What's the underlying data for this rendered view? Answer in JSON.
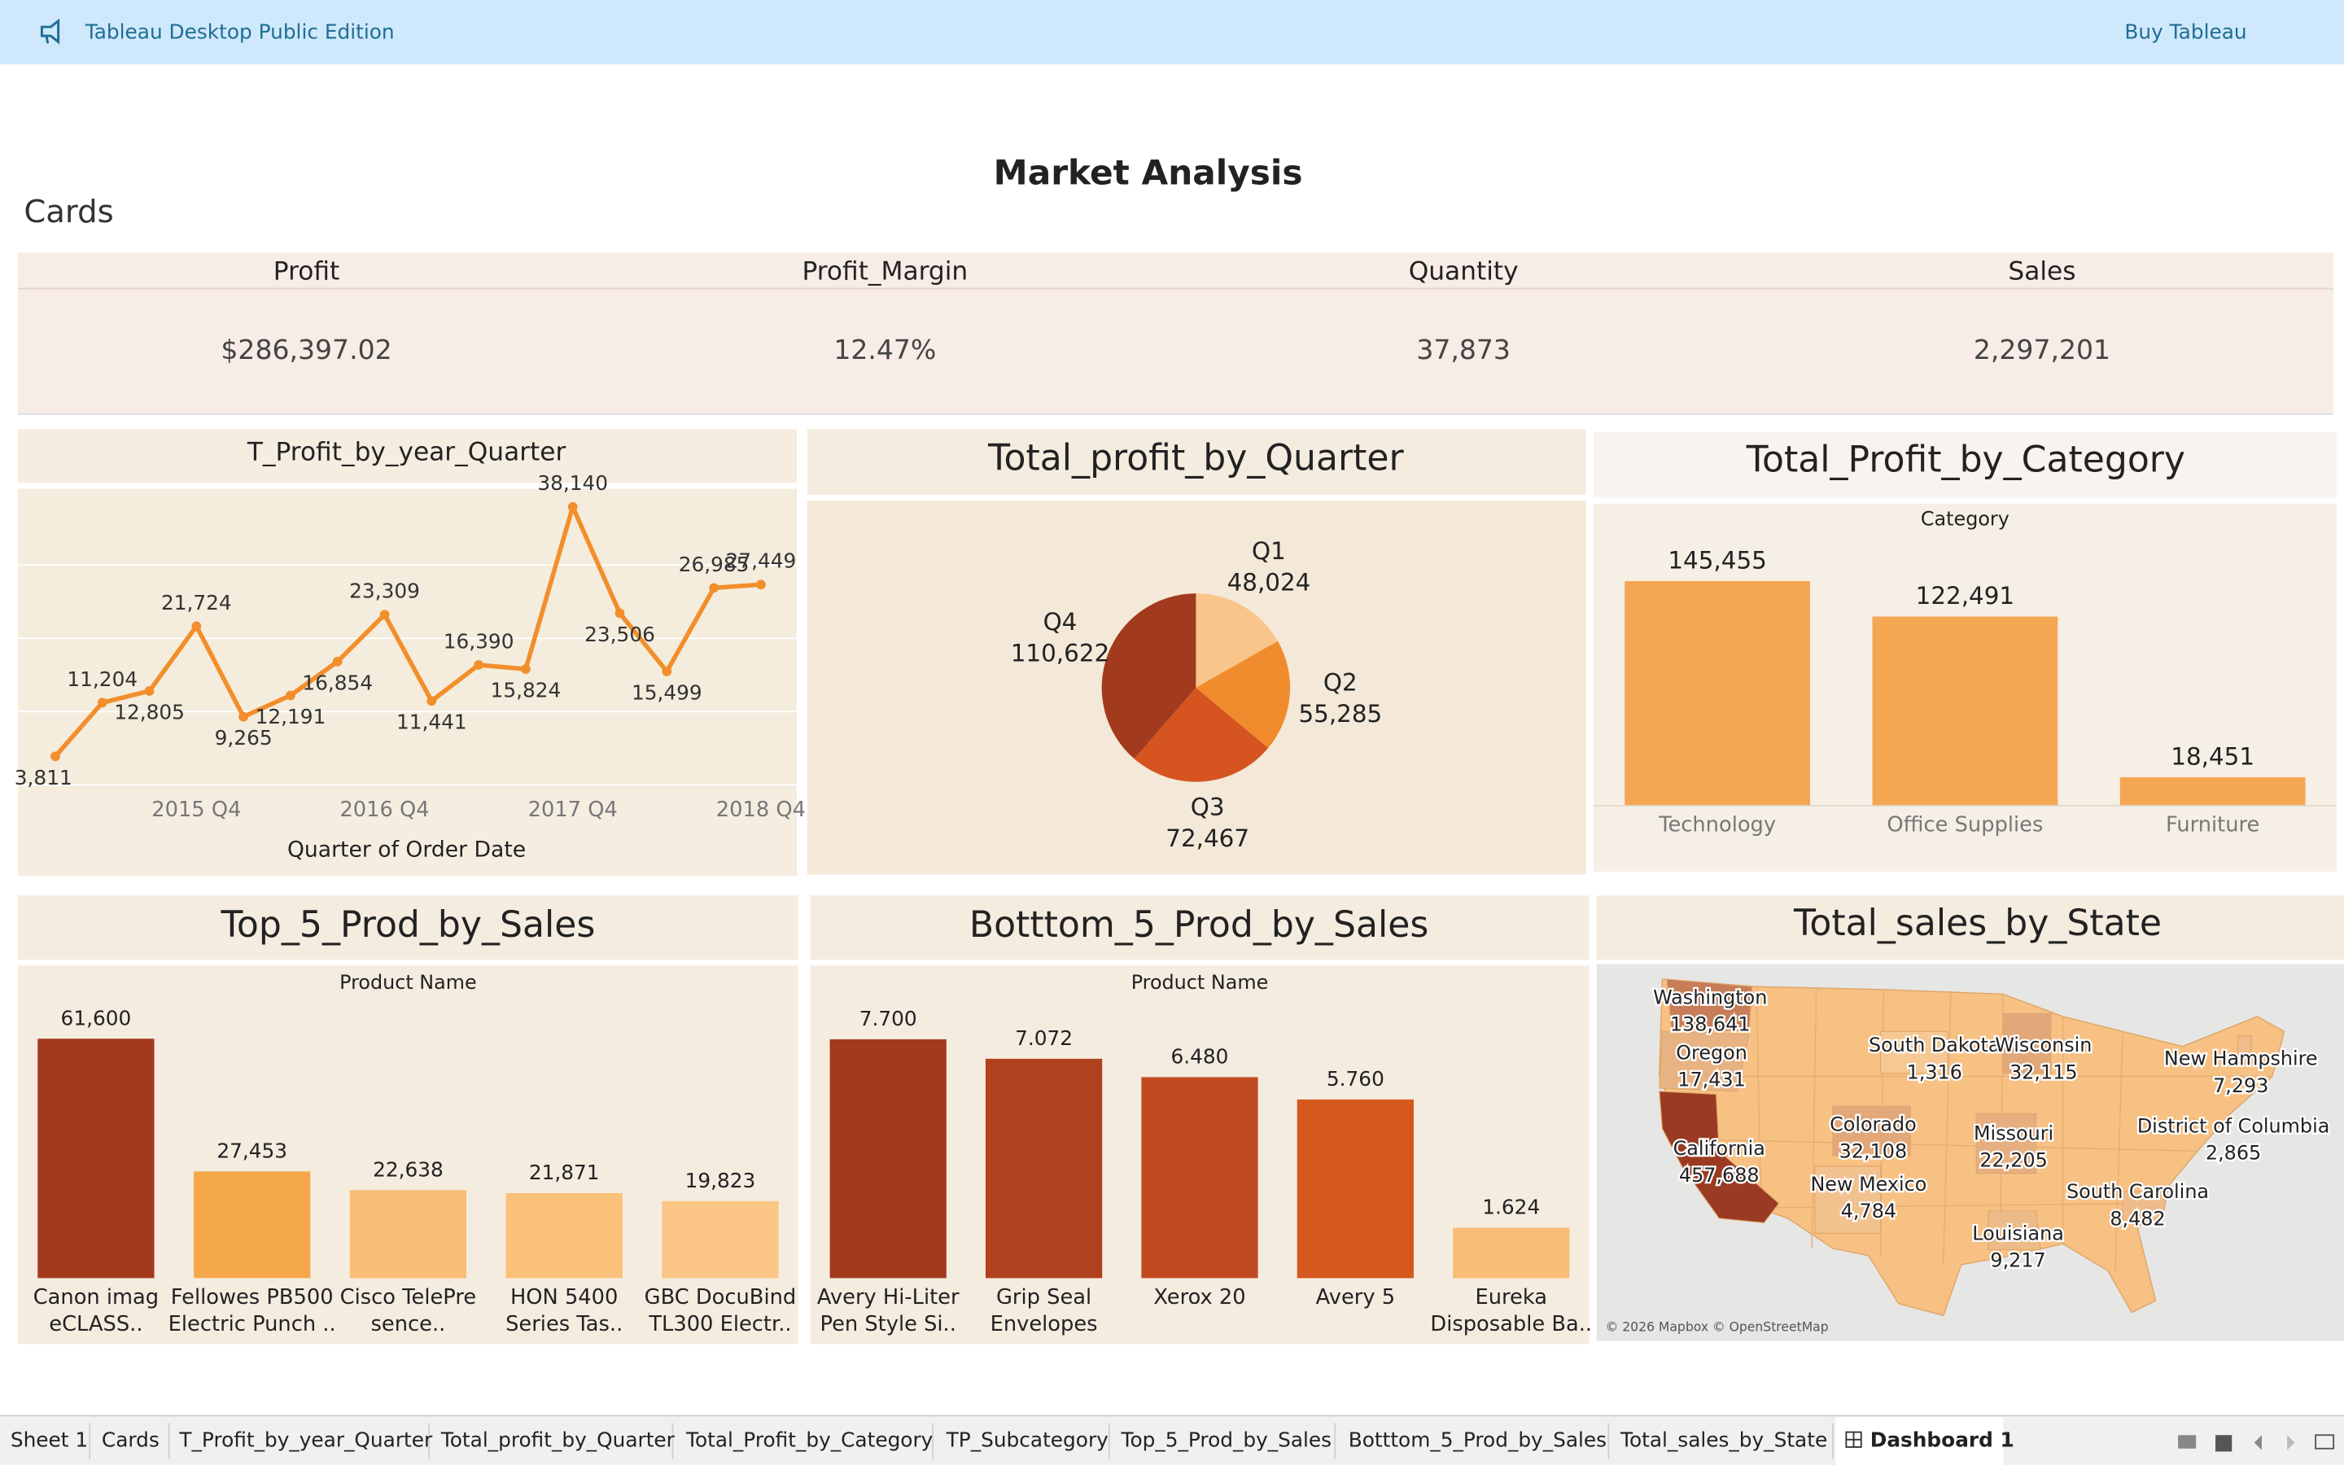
{
  "app_bar": {
    "title": "Tableau Desktop Public Edition",
    "action": "Buy Tableau"
  },
  "dashboard": {
    "title": "Market Analysis",
    "section": "Cards"
  },
  "cards": [
    {
      "label": "Profit",
      "value": "$286,397.02"
    },
    {
      "label": "Profit_Margin",
      "value": "12.47%"
    },
    {
      "label": "Quantity",
      "value": "37,873"
    },
    {
      "label": "Sales",
      "value": "2,297,201"
    }
  ],
  "chart_data": [
    {
      "type": "line",
      "title": "T_Profit_by_year_Quarter",
      "x_label": "Quarter of Order Date",
      "color": "#f28e2b",
      "categories": [
        null,
        null,
        null,
        "2015 Q4",
        null,
        null,
        null,
        "2016 Q4",
        null,
        null,
        null,
        "2017 Q4",
        null,
        null,
        null,
        "2018 Q4"
      ],
      "values": [
        3811,
        11204,
        12805,
        21724,
        9265,
        12191,
        16854,
        23309,
        11441,
        16390,
        15824,
        38140,
        23506,
        15499,
        26985,
        27449
      ],
      "value_labels": [
        "3,811",
        "11,204",
        "12,805",
        "21,724",
        "9,265",
        "12,191",
        "16,854",
        "23,309",
        "11,441",
        "16,390",
        "15,824",
        "38,140",
        "23,506",
        "15,499",
        "26,985",
        "27,449"
      ],
      "ylim": [
        0,
        40000
      ]
    },
    {
      "type": "pie",
      "title": "Total_profit_by_Quarter",
      "categories": [
        "Q1",
        "Q2",
        "Q3",
        "Q4"
      ],
      "values": [
        48024,
        55285,
        72467,
        110622
      ],
      "value_labels": [
        "48,024",
        "55,285",
        "72,467",
        "110,622"
      ],
      "colors": [
        "#f9c58b",
        "#f08c2e",
        "#d5541f",
        "#a23a1e"
      ]
    },
    {
      "type": "bar",
      "title": "Total_Profit_by_Category",
      "x_label": "Category",
      "categories": [
        "Technology",
        "Office Supplies",
        "Furniture"
      ],
      "values": [
        145455,
        122491,
        18451
      ],
      "value_labels": [
        "145,455",
        "122,491",
        "18,451"
      ],
      "colors": [
        "#f5a653",
        "#f5a653",
        "#f5a653"
      ],
      "ylim": [
        0,
        150000
      ]
    },
    {
      "type": "bar",
      "title": "Top_5_Prod_by_Sales",
      "x_label": "Product Name",
      "categories": [
        [
          "Canon imag",
          "eCLASS.."
        ],
        [
          "Fellowes PB500",
          "Electric Punch .."
        ],
        [
          "Cisco TelePre",
          "sence.."
        ],
        [
          "HON 5400",
          "Series Tas.."
        ],
        [
          "GBC DocuBind",
          "TL300 Electr.."
        ]
      ],
      "values": [
        61600,
        27453,
        22638,
        21871,
        19823
      ],
      "value_labels": [
        "61,600",
        "27,453",
        "22,638",
        "21,871",
        "19,823"
      ],
      "colors": [
        "#a23a1e",
        "#f5a84a",
        "#f9bd77",
        "#fbc07a",
        "#fbc585"
      ],
      "ylim": [
        0,
        65000
      ]
    },
    {
      "type": "bar",
      "title": "Botttom_5_Prod_by_Sales",
      "x_label": "Product Name",
      "categories": [
        [
          "Avery Hi-Liter",
          "Pen Style Si.."
        ],
        [
          "Grip Seal",
          "Envelopes"
        ],
        [
          "Xerox 20"
        ],
        [
          "Avery 5"
        ],
        [
          "Eureka",
          "Disposable Ba.."
        ]
      ],
      "values": [
        7.7,
        7.072,
        6.48,
        5.76,
        1.624
      ],
      "value_labels": [
        "7.700",
        "7.072",
        "6.480",
        "5.760",
        "1.624"
      ],
      "colors": [
        "#a23a1e",
        "#b0411f",
        "#c14a20",
        "#d5581f",
        "#f9bd77"
      ],
      "ylim": [
        0,
        8
      ]
    },
    {
      "type": "map",
      "title": "Total_sales_by_State",
      "credit": "© 2026 Mapbox © OpenStreetMap",
      "categories": [
        "Washington",
        "Oregon",
        "California",
        "South Dakota",
        "Wisconsin",
        "Colorado",
        "Missouri",
        "New Mexico",
        "Louisiana",
        "New Hampshire",
        "District of Columbia",
        "South Carolina"
      ],
      "values": [
        138641,
        17431,
        457688,
        1316,
        32115,
        32108,
        22205,
        4784,
        9217,
        7293,
        2865,
        8482
      ],
      "value_labels": [
        "138,641",
        "17,431",
        "457,688",
        "1,316",
        "32,115",
        "32,108",
        "22,205",
        "4,784",
        "9,217",
        "7,293",
        "2,865",
        "8,482"
      ],
      "color_range": [
        "#fbd09a",
        "#9b3a22"
      ]
    }
  ],
  "tabs": [
    "Sheet 1",
    "Cards",
    "T_Profit_by_year_Quarter",
    "Total_profit_by_Quarter",
    "Total_Profit_by_Category",
    "TP_Subcategory",
    "Top_5_Prod_by_Sales",
    "Botttom_5_Prod_by_Sales",
    "Total_sales_by_State",
    "Dashboard 1"
  ],
  "active_tab": 9
}
